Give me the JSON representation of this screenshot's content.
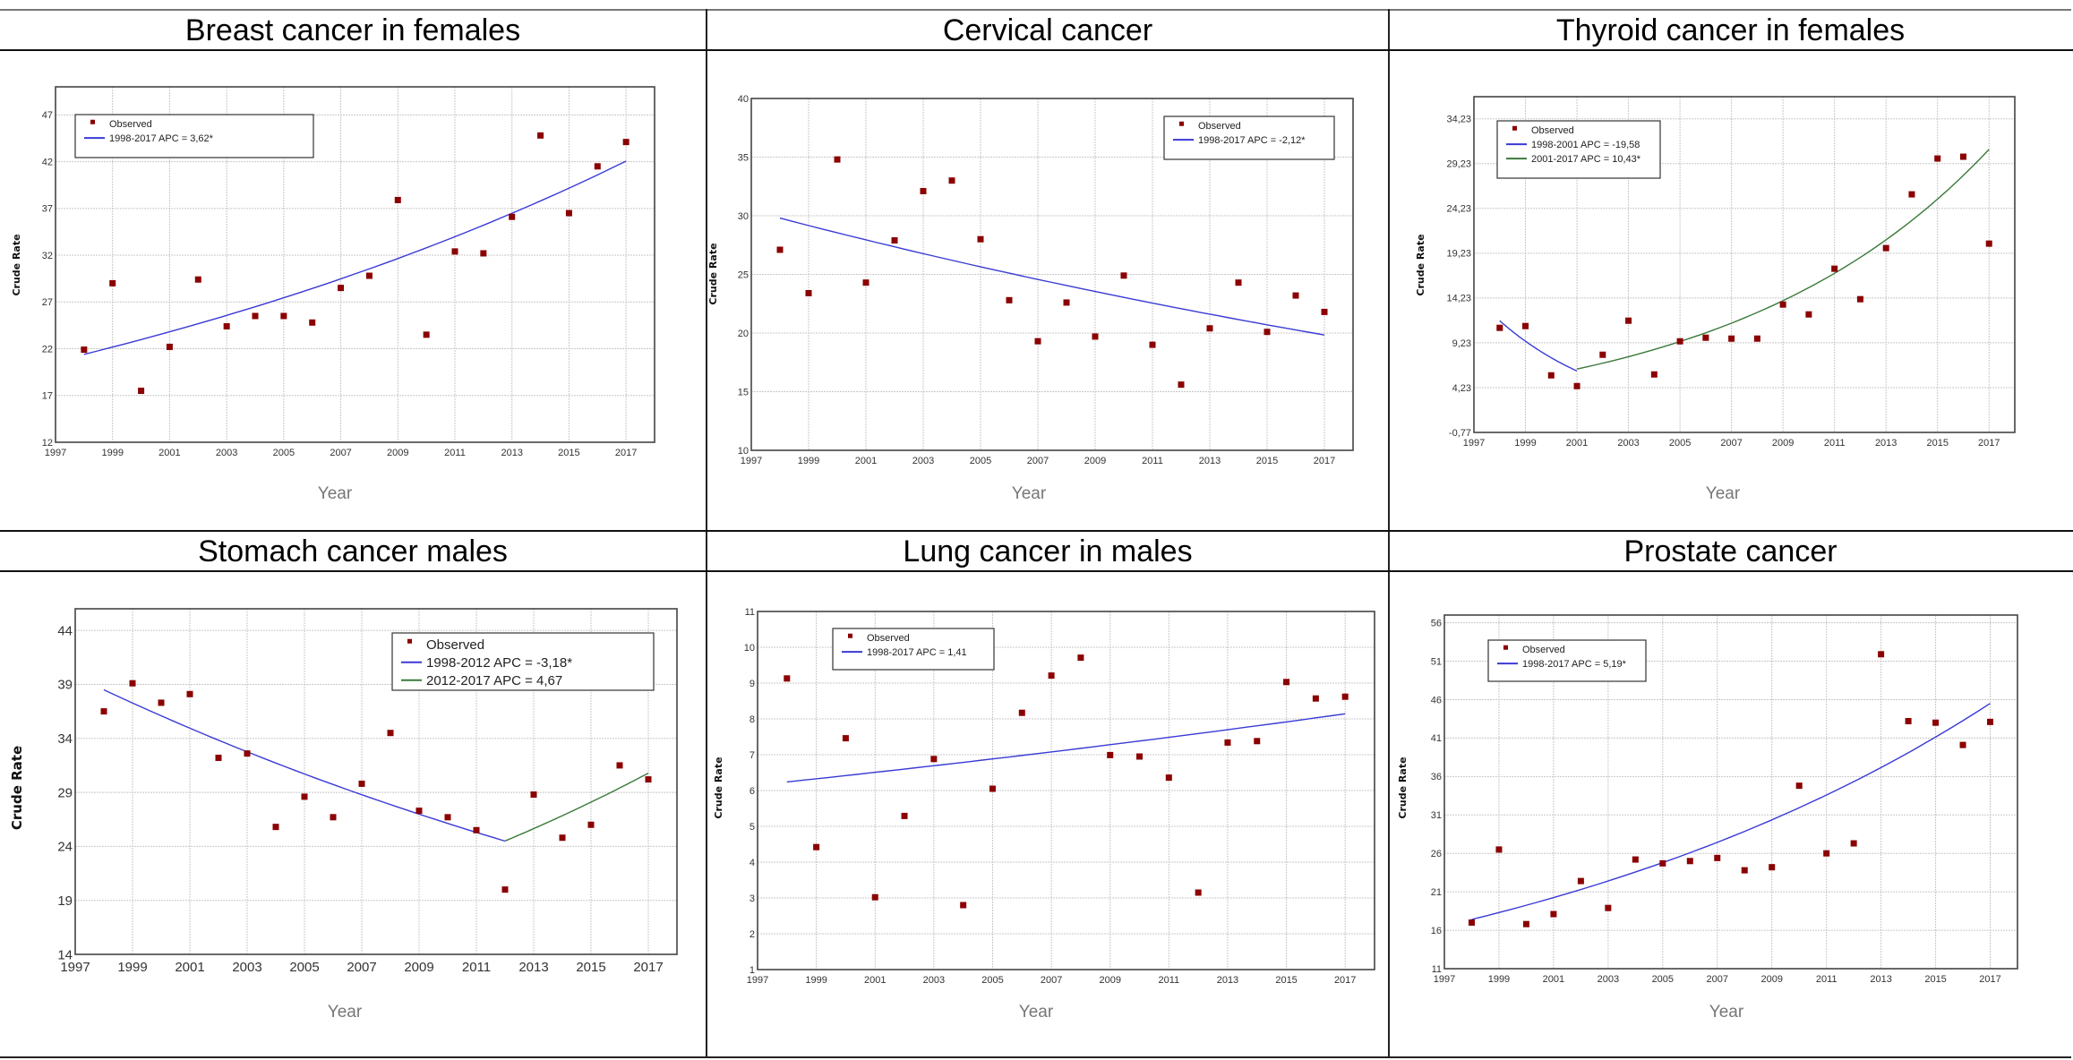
{
  "chart_data": [
    {
      "type": "scatter",
      "title": "Breast cancer in females",
      "xlabel": "Year",
      "ylabel": "Crude Rate",
      "xlim": [
        1997,
        2018
      ],
      "ylim": [
        12,
        50
      ],
      "xticks": [
        1997,
        1999,
        2001,
        2003,
        2005,
        2007,
        2009,
        2011,
        2013,
        2015,
        2017
      ],
      "yticks": [
        12,
        17,
        22,
        27,
        32,
        37,
        42,
        47
      ],
      "ytick_labels": [
        "12",
        "17",
        "22",
        "27",
        "32",
        "37",
        "42",
        "47"
      ],
      "grid": true,
      "legend_position": "top-left",
      "x": [
        1998,
        1999,
        2000,
        2001,
        2002,
        2003,
        2004,
        2005,
        2006,
        2007,
        2008,
        2009,
        2010,
        2011,
        2012,
        2013,
        2014,
        2015,
        2016,
        2017
      ],
      "observed": [
        21.9,
        29.0,
        17.5,
        22.2,
        29.4,
        24.4,
        25.5,
        25.5,
        24.8,
        28.5,
        29.8,
        37.9,
        23.5,
        32.4,
        32.2,
        36.1,
        44.8,
        36.5,
        41.5,
        44.1
      ],
      "observed_label": "Observed",
      "segments": [
        {
          "label": "1998-2017 APC  = 3,62*",
          "color": "#3a3ad6",
          "start": 1998,
          "end": 2017,
          "y_start": 21.4,
          "apc": 3.62
        }
      ]
    },
    {
      "type": "scatter",
      "title": "Cervical cancer",
      "xlabel": "Year",
      "ylabel": "Crude Rate",
      "xlim": [
        1997,
        2018
      ],
      "ylim": [
        10,
        40
      ],
      "xticks": [
        1997,
        1999,
        2001,
        2003,
        2005,
        2007,
        2009,
        2011,
        2013,
        2015,
        2017
      ],
      "yticks": [
        10,
        15,
        20,
        25,
        30,
        35,
        40
      ],
      "ytick_labels": [
        "10",
        "15",
        "20",
        "25",
        "30",
        "35",
        "40"
      ],
      "grid": true,
      "legend_position": "top-right",
      "x": [
        1998,
        1999,
        2000,
        2001,
        2002,
        2003,
        2004,
        2005,
        2006,
        2007,
        2008,
        2009,
        2010,
        2011,
        2012,
        2013,
        2014,
        2015,
        2016,
        2017
      ],
      "observed": [
        27.1,
        23.4,
        34.8,
        24.3,
        27.9,
        32.1,
        33.0,
        28.0,
        22.8,
        19.3,
        22.6,
        19.7,
        24.9,
        19.0,
        15.6,
        20.4,
        24.3,
        20.1,
        23.2,
        21.8
      ],
      "observed_label": "Observed",
      "segments": [
        {
          "label": "1998-2017 APC  = -2,12*",
          "color": "#3a3ad6",
          "start": 1998,
          "end": 2017,
          "y_start": 29.8,
          "apc": -2.12
        }
      ]
    },
    {
      "type": "scatter",
      "title": "Thyroid cancer in females",
      "xlabel": "Year",
      "ylabel": "Crude Rate",
      "xlim": [
        1997,
        2018
      ],
      "ylim": [
        -0.77,
        36.7
      ],
      "xticks": [
        1997,
        1999,
        2001,
        2003,
        2005,
        2007,
        2009,
        2011,
        2013,
        2015,
        2017
      ],
      "yticks": [
        -0.77,
        4.23,
        9.23,
        14.23,
        19.23,
        24.23,
        29.23,
        34.23
      ],
      "ytick_labels": [
        "-0,77",
        "4,23",
        "9,23",
        "14,23",
        "19,23",
        "24,23",
        "29,23",
        "34,23"
      ],
      "grid": true,
      "legend_position": "top-left",
      "x": [
        1998,
        1999,
        2000,
        2001,
        2002,
        2003,
        2004,
        2005,
        2006,
        2007,
        2008,
        2009,
        2010,
        2011,
        2012,
        2013,
        2014,
        2015,
        2016,
        2017
      ],
      "observed": [
        10.9,
        11.1,
        5.6,
        4.4,
        7.9,
        11.7,
        5.7,
        9.4,
        9.8,
        9.7,
        9.7,
        13.5,
        12.4,
        17.5,
        14.1,
        19.8,
        25.8,
        29.8,
        30.0,
        20.3
      ],
      "observed_label": "Observed",
      "segments": [
        {
          "label": "1998-2001 APC  = -19,58",
          "color": "#3a3ad6",
          "start": 1998,
          "end": 2001,
          "y_start": 11.7,
          "apc": -19.58
        },
        {
          "label": "2001-2017 APC  =  10,43*",
          "color": "#3a7a3a",
          "start": 2001,
          "end": 2017,
          "y_start": 6.3,
          "apc": 10.43
        }
      ]
    },
    {
      "type": "scatter",
      "title": "Stomach cancer males",
      "xlabel": "Year",
      "ylabel": "Crude Rate",
      "xlim": [
        1997,
        2018
      ],
      "ylim": [
        14,
        46
      ],
      "xticks": [
        1997,
        1999,
        2001,
        2003,
        2005,
        2007,
        2009,
        2011,
        2013,
        2015,
        2017
      ],
      "yticks": [
        14,
        19,
        24,
        29,
        34,
        39,
        44
      ],
      "ytick_labels": [
        "14",
        "19",
        "24",
        "29",
        "34",
        "39",
        "44"
      ],
      "grid": true,
      "legend_position": "top-right",
      "x": [
        1998,
        1999,
        2000,
        2001,
        2002,
        2003,
        2004,
        2005,
        2006,
        2007,
        2008,
        2009,
        2010,
        2011,
        2012,
        2013,
        2014,
        2015,
        2016,
        2017
      ],
      "observed": [
        36.5,
        39.1,
        37.3,
        38.1,
        32.2,
        32.6,
        25.8,
        28.6,
        26.7,
        29.8,
        34.5,
        27.3,
        26.7,
        25.5,
        20.0,
        28.8,
        24.8,
        26.0,
        31.5,
        30.2
      ],
      "observed_label": "Observed",
      "segments": [
        {
          "label": "1998-2012 APC  = -3,18*",
          "color": "#3a3ad6",
          "start": 1998,
          "end": 2012,
          "y_start": 38.5,
          "apc": -3.18
        },
        {
          "label": "2012-2017 APC  =  4,67",
          "color": "#3a7a3a",
          "start": 2012,
          "end": 2017,
          "y_start": 24.5,
          "apc": 4.67
        }
      ]
    },
    {
      "type": "scatter",
      "title": "Lung cancer in males",
      "xlabel": "Year",
      "ylabel": "Crude Rate",
      "xlim": [
        1997,
        2018
      ],
      "ylim": [
        1,
        11
      ],
      "xticks": [
        1997,
        1999,
        2001,
        2003,
        2005,
        2007,
        2009,
        2011,
        2013,
        2015,
        2017
      ],
      "yticks": [
        1,
        2,
        3,
        4,
        5,
        6,
        7,
        8,
        9,
        10,
        11
      ],
      "ytick_labels": [
        "1",
        "2",
        "3",
        "4",
        "5",
        "6",
        "7",
        "8",
        "9",
        "10",
        "11"
      ],
      "grid": true,
      "legend_position": "top-left",
      "x": [
        1998,
        1999,
        2000,
        2001,
        2002,
        2003,
        2004,
        2005,
        2006,
        2007,
        2008,
        2009,
        2010,
        2011,
        2012,
        2013,
        2014,
        2015,
        2016,
        2017
      ],
      "observed": [
        9.13,
        4.42,
        7.46,
        3.02,
        5.29,
        6.88,
        2.8,
        6.05,
        8.17,
        9.21,
        9.71,
        6.99,
        6.95,
        6.36,
        3.15,
        7.34,
        7.38,
        9.03,
        8.57,
        8.62
      ],
      "observed_label": "Observed",
      "segments": [
        {
          "label": "1998-2017 APC  = 1,41",
          "color": "#3a3ad6",
          "start": 1998,
          "end": 2017,
          "y_start": 6.24,
          "apc": 1.41
        }
      ]
    },
    {
      "type": "scatter",
      "title": "Prostate cancer",
      "xlabel": "Year",
      "ylabel": "Crude Rate",
      "xlim": [
        1997,
        2018
      ],
      "ylim": [
        11,
        57
      ],
      "xticks": [
        1997,
        1999,
        2001,
        2003,
        2005,
        2007,
        2009,
        2011,
        2013,
        2015,
        2017
      ],
      "yticks": [
        11,
        16,
        21,
        26,
        31,
        36,
        41,
        46,
        51,
        56
      ],
      "ytick_labels": [
        "11",
        "16",
        "21",
        "26",
        "31",
        "36",
        "41",
        "46",
        "51",
        "56"
      ],
      "grid": true,
      "legend_position": "top-left",
      "x": [
        1998,
        1999,
        2000,
        2001,
        2002,
        2003,
        2004,
        2005,
        2006,
        2007,
        2008,
        2009,
        2010,
        2011,
        2012,
        2013,
        2014,
        2015,
        2016,
        2017
      ],
      "observed": [
        17.0,
        26.5,
        16.8,
        18.1,
        22.4,
        18.9,
        25.2,
        24.7,
        25.0,
        25.4,
        23.8,
        24.2,
        34.8,
        26.0,
        27.3,
        51.9,
        43.2,
        43.0,
        40.1,
        43.1
      ],
      "observed_label": "Observed",
      "segments": [
        {
          "label": "1998-2017 APC  = 5,19*",
          "color": "#3a3ad6",
          "start": 1998,
          "end": 2017,
          "y_start": 17.4,
          "apc": 5.19
        }
      ]
    }
  ],
  "colors": {
    "observed_marker": "#8b0000",
    "grid": "#c8c8c8",
    "frame": "#444444"
  }
}
